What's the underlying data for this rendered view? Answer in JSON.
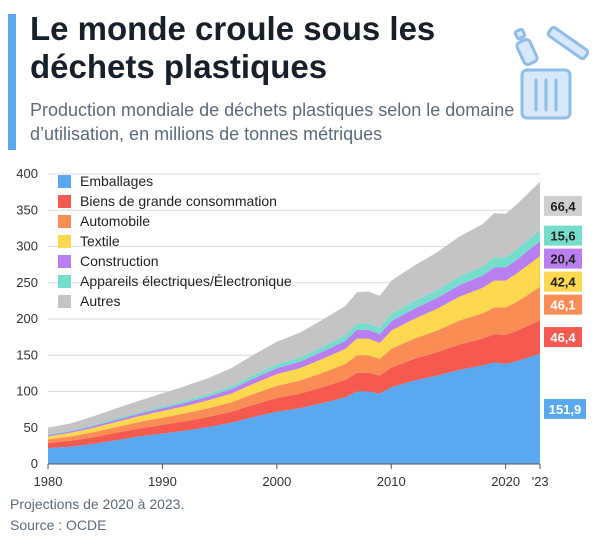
{
  "header": {
    "title": "Le monde croule sous les déchets plastiques",
    "subtitle": "Production mondiale de déchets plastiques selon le domaine d’utilisation, en millions de tonnes métriques"
  },
  "icon": "trash-bin-with-plastic-bottle-icon",
  "colors": {
    "accent": "#5aa8f0",
    "Emballages": "#5aa8f0",
    "Biens de grande consommation": "#f45a50",
    "Automobile": "#fa8c56",
    "Textile": "#fbd84e",
    "Construction": "#b97ef0",
    "Appareils électriques/Électronique": "#76dccb",
    "Autres": "#c4c4c4"
  },
  "footer": {
    "note": "Projections de 2020 à 2023.",
    "source": "Source : OCDE"
  },
  "chart_data": {
    "type": "area",
    "stacked": true,
    "x": [
      1980,
      1982,
      1984,
      1986,
      1988,
      1990,
      1992,
      1994,
      1996,
      1998,
      2000,
      2002,
      2004,
      2006,
      2007,
      2008,
      2009,
      2010,
      2012,
      2014,
      2016,
      2018,
      2019,
      2020,
      2021,
      2022,
      2023
    ],
    "xticks": [
      "1980",
      "1990",
      "2000",
      "2010",
      "2020",
      "’23"
    ],
    "xtick_values": [
      1980,
      1990,
      2000,
      2010,
      2020,
      2023
    ],
    "ylim": [
      0,
      400
    ],
    "yticks": [
      0,
      50,
      100,
      150,
      200,
      250,
      300,
      350,
      400
    ],
    "grid": true,
    "legend_position": "top-left",
    "series": [
      {
        "name": "Emballages",
        "values": [
          22,
          24,
          28,
          33,
          38,
          42,
          46,
          51,
          57,
          65,
          72,
          77,
          84,
          92,
          100,
          100,
          97,
          106,
          115,
          122,
          130,
          136,
          140,
          138,
          142,
          147,
          151.9
        ]
      },
      {
        "name": "Biens de grande consommation",
        "values": [
          7,
          8,
          9,
          10,
          11,
          12,
          13,
          14,
          15,
          17,
          19,
          20,
          22,
          24,
          26,
          26,
          25,
          27,
          30,
          32,
          35,
          37,
          39,
          40,
          42,
          44,
          46.4
        ]
      },
      {
        "name": "Automobile",
        "values": [
          5,
          6,
          7,
          8,
          9,
          10,
          11,
          12,
          13,
          15,
          17,
          18,
          20,
          22,
          24,
          24,
          23,
          26,
          28,
          30,
          33,
          35,
          37,
          38,
          40,
          43,
          46.1
        ]
      },
      {
        "name": "Textile",
        "values": [
          4,
          5,
          6,
          7,
          8,
          9,
          10,
          11,
          12,
          14,
          16,
          17,
          19,
          21,
          23,
          23,
          22,
          25,
          27,
          30,
          33,
          35,
          37,
          37,
          39,
          41,
          42.4
        ]
      },
      {
        "name": "Construction",
        "values": [
          2,
          2,
          2.5,
          3,
          3.5,
          4,
          4.5,
          5,
          6,
          7,
          8,
          9,
          10,
          11,
          12,
          12,
          12,
          13,
          14,
          15,
          16,
          17,
          18,
          18,
          19,
          20,
          20.4
        ]
      },
      {
        "name": "Appareils électriques/Électronique",
        "values": [
          1,
          1,
          1.5,
          2,
          2,
          2.5,
          3,
          3.5,
          4,
          5,
          5.5,
          6,
          7,
          8,
          9,
          9,
          9,
          10,
          10.5,
          11,
          12,
          13,
          14,
          14,
          14.5,
          15,
          15.6
        ]
      },
      {
        "name": "Autres",
        "values": [
          9,
          10,
          12,
          14,
          16,
          18,
          20,
          22,
          25,
          28,
          31,
          34,
          37,
          40,
          43,
          44,
          44,
          46,
          49,
          52,
          55,
          58,
          61,
          60,
          62,
          64,
          66.4
        ]
      }
    ],
    "end_labels": [
      {
        "series": "Autres",
        "label": "66,4"
      },
      {
        "series": "Appareils électriques/Électronique",
        "label": "15,6"
      },
      {
        "series": "Construction",
        "label": "20,4"
      },
      {
        "series": "Textile",
        "label": "42,4"
      },
      {
        "series": "Automobile",
        "label": "46,1"
      },
      {
        "series": "Biens de grande consommation",
        "label": "46,4"
      },
      {
        "series": "Emballages",
        "label": "151,9"
      }
    ]
  }
}
